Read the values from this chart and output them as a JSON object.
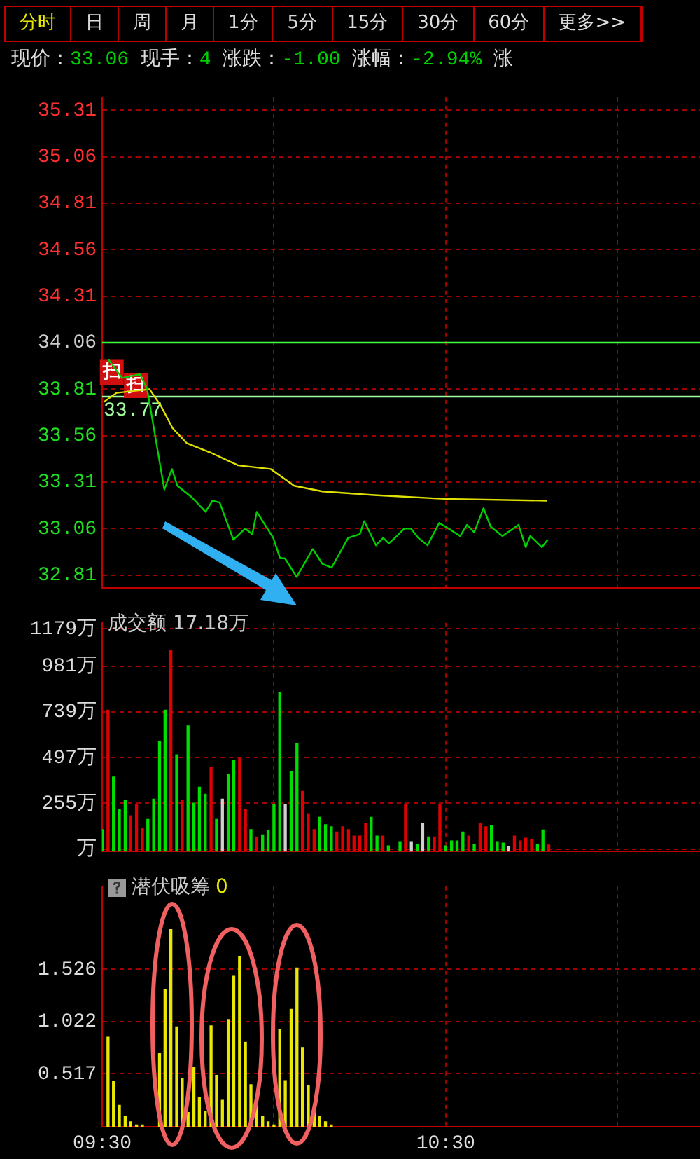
{
  "chart_data": [
    {
      "type": "other",
      "categories": [
        "分时",
        "日",
        "周",
        "月",
        "1分",
        "5分",
        "15分",
        "30分",
        "60分",
        "更多>>"
      ],
      "annotations": [
        "现价：33.06",
        "现手：4",
        "涨跌：-1.00",
        "涨幅：-2.94%",
        "涨"
      ]
    },
    {
      "type": "line",
      "xlim": [
        9.5,
        11.24
      ],
      "xticks": [
        {
          "value": 9.5,
          "label": null
        },
        {
          "value": 10,
          "label": null
        },
        {
          "value": 10.5,
          "label": null
        },
        {
          "value": 11,
          "label": null
        }
      ],
      "ylim": [
        32.74,
        35.38
      ],
      "yticks": [
        35.31,
        35.06,
        34.81,
        34.56,
        34.31,
        34.06,
        33.81,
        33.56,
        33.31,
        33.06,
        32.81
      ],
      "grid": true,
      "legend": false,
      "tick_labels": "y",
      "marker": "none",
      "series": [
        {
          "color": "#00d000",
          "x": [
            9.518,
            9.558,
            9.61,
            9.631,
            9.681,
            9.703,
            9.719,
            9.76,
            9.801,
            9.821,
            9.842,
            9.882,
            9.916,
            9.937,
            9.95,
            9.998,
            10.018,
            10.032,
            10.066,
            10.113,
            10.141,
            10.168,
            10.216,
            10.25,
            10.263,
            10.297,
            10.318,
            10.334,
            10.358,
            10.379,
            10.399,
            10.42,
            10.447,
            10.481,
            10.508,
            10.542,
            10.562,
            10.583,
            10.61,
            10.631,
            10.665,
            10.712,
            10.733,
            10.746,
            10.78,
            10.797
          ],
          "values": [
            33.97,
            33.87,
            33.89,
            33.81,
            33.27,
            33.38,
            33.29,
            33.23,
            33.15,
            33.21,
            33.2,
            33.0,
            33.06,
            33.03,
            33.15,
            33.01,
            32.9,
            32.9,
            32.8,
            32.95,
            32.87,
            32.85,
            33.01,
            33.03,
            33.1,
            32.97,
            33.01,
            32.98,
            33.02,
            33.06,
            33.06,
            33.01,
            32.97,
            33.09,
            33.06,
            33.02,
            33.08,
            33.04,
            33.17,
            33.07,
            33.02,
            33.08,
            32.96,
            33.02,
            32.96,
            33.0
          ]
        },
        {
          "color": "#e0e000",
          "x": [
            9.504,
            9.542,
            9.638,
            9.671,
            9.705,
            9.746,
            9.814,
            9.896,
            9.991,
            10.059,
            10.141,
            10.291,
            10.495,
            10.794
          ],
          "values": [
            33.74,
            33.79,
            33.81,
            33.72,
            33.6,
            33.52,
            33.47,
            33.4,
            33.38,
            33.29,
            33.26,
            33.24,
            33.22,
            33.21
          ]
        }
      ],
      "ref_lines": [
        {
          "axis": "y",
          "value": 34.06,
          "color": "#40ff40"
        },
        {
          "axis": "y",
          "value": 33.77,
          "label": "33.77",
          "color": "#a0ffa0"
        }
      ],
      "annotations": [
        {
          "text": "扫",
          "x": 9.528,
          "y": 33.9
        },
        {
          "text": "扫",
          "x": 9.598,
          "y": 33.83
        }
      ]
    },
    {
      "type": "bar",
      "title": "成交额 17.18万",
      "xlim": [
        9.5,
        11.24
      ],
      "xticks": [
        {
          "value": 9.5,
          "label": null
        },
        {
          "value": 10,
          "label": null
        },
        {
          "value": 10.5,
          "label": null
        },
        {
          "value": 11,
          "label": null
        }
      ],
      "ylim": [
        0,
        1210
      ],
      "yticks": [
        {
          "value": 1179,
          "label": "1179万"
        },
        {
          "value": 981,
          "label": "981万"
        },
        {
          "value": 739,
          "label": "739万"
        },
        {
          "value": 497,
          "label": "497万"
        },
        {
          "value": 255,
          "label": "255万"
        },
        {
          "value": 13,
          "label": "万"
        }
      ],
      "grid": true,
      "legend": false,
      "tick_labels": "y",
      "x": [
        9.5,
        9.517,
        9.533,
        9.55,
        9.567,
        9.583,
        9.6,
        9.617,
        9.633,
        9.65,
        9.667,
        9.683,
        9.7,
        9.717,
        9.733,
        9.75,
        9.767,
        9.783,
        9.8,
        9.817,
        9.833,
        9.85,
        9.867,
        9.883,
        9.9,
        9.917,
        9.933,
        9.95,
        9.967,
        9.983,
        10.0,
        10.017,
        10.033,
        10.05,
        10.067,
        10.083,
        10.1,
        10.117,
        10.133,
        10.15,
        10.167,
        10.183,
        10.2,
        10.217,
        10.233,
        10.25,
        10.267,
        10.283,
        10.3,
        10.317,
        10.333,
        10.35,
        10.367,
        10.383,
        10.4,
        10.417,
        10.433,
        10.45,
        10.467,
        10.483,
        10.5,
        10.517,
        10.533,
        10.55,
        10.567,
        10.583,
        10.6,
        10.617,
        10.633,
        10.65,
        10.667,
        10.683,
        10.7,
        10.717,
        10.733,
        10.75,
        10.767,
        10.783,
        10.8
      ],
      "values": [
        116,
        748,
        394,
        221,
        271,
        189,
        250,
        121,
        170,
        277,
        583,
        748,
        1063,
        512,
        271,
        665,
        256,
        340,
        303,
        447,
        170,
        277,
        408,
        482,
        492,
        221,
        116,
        77,
        88,
        110,
        250,
        841,
        250,
        421,
        572,
        318,
        200,
        116,
        181,
        142,
        131,
        103,
        131,
        116,
        82,
        82,
        148,
        181,
        82,
        82,
        30,
        null,
        52,
        250,
        52,
        39,
        148,
        77,
        77,
        250,
        30,
        56,
        56,
        103,
        82,
        39,
        148,
        131,
        137,
        52,
        45,
        24,
        82,
        56,
        71,
        63,
        39,
        114,
        34
      ],
      "colors": [
        "#00e000",
        "#e00000",
        "#00e000",
        "#00e000",
        "#00e000",
        "#e00000",
        "#e00000",
        "#e00000",
        "#00e000",
        "#00e000",
        "#00e000",
        "#00e000",
        "#e00000",
        "#00e000",
        "#e00000",
        "#00e000",
        "#00e000",
        "#00e000",
        "#00e000",
        "#e00000",
        "#00e000",
        "#d0d0d0",
        "#00e000",
        "#00e000",
        "#e00000",
        "#e00000",
        "#00e000",
        "#e00000",
        "#00e000",
        "#00e000",
        "#00e000",
        "#00e000",
        "#d0d0d0",
        "#00e000",
        "#00e000",
        "#e00000",
        "#e00000",
        "#e00000",
        "#00e000",
        "#00e000",
        "#00e000",
        "#e00000",
        "#e00000",
        "#e00000",
        "#e00000",
        "#e00000",
        "#e00000",
        "#00e000",
        "#00e000",
        "#e00000",
        "#00e000",
        null,
        "#00e000",
        "#e00000",
        "#d0d0d0",
        "#00e000",
        "#d0d0d0",
        "#00e000",
        "#e00000",
        "#e00000",
        "#00e000",
        "#00e000",
        "#00e000",
        "#00e000",
        "#e00000",
        "#00e000",
        "#e00000",
        "#e00000",
        "#00e000",
        "#00e000",
        "#00e000",
        "#d0d0d0",
        "#e00000",
        "#e00000",
        "#e00000",
        "#e00000",
        "#00e000",
        "#00e000",
        "#e00000"
      ]
    },
    {
      "type": "bar",
      "title": "潜伏吸筹",
      "subtitle": "0",
      "color": "#e8e800",
      "xlim": [
        9.5,
        11.24
      ],
      "xticks": [
        {
          "value": 9.5,
          "label": "09:30"
        },
        {
          "value": 10,
          "label": null
        },
        {
          "value": 10.5,
          "label": "10:30"
        },
        {
          "value": 11,
          "label": null
        }
      ],
      "ylim": [
        0,
        2.33
      ],
      "yticks": [
        1.526,
        1.022,
        0.517
      ],
      "grid": true,
      "legend": false,
      "x": [
        9.517,
        9.533,
        9.55,
        9.567,
        9.583,
        9.6,
        9.617,
        9.633,
        9.65,
        9.667,
        9.683,
        9.7,
        9.717,
        9.733,
        9.75,
        9.767,
        9.783,
        9.8,
        9.817,
        9.833,
        9.85,
        9.867,
        9.883,
        9.9,
        9.917,
        9.933,
        9.95,
        9.967,
        9.983,
        10.0,
        10.017,
        10.033,
        10.05,
        10.067,
        10.083,
        10.1,
        10.117,
        10.133,
        10.15,
        10.167
      ],
      "values": [
        0.87,
        0.44,
        0.21,
        0.1,
        0.05,
        0.02,
        0.02,
        null,
        null,
        0.71,
        1.33,
        1.91,
        0.97,
        0.47,
        0.14,
        0.58,
        0.29,
        0.15,
        0.98,
        0.5,
        0.26,
        1.04,
        1.46,
        1.65,
        0.82,
        0.41,
        0.21,
        0.1,
        0.05,
        0.02,
        0.94,
        0.45,
        1.14,
        1.54,
        0.77,
        0.4,
        0.16,
        0.1,
        0.05,
        0.02
      ]
    }
  ]
}
